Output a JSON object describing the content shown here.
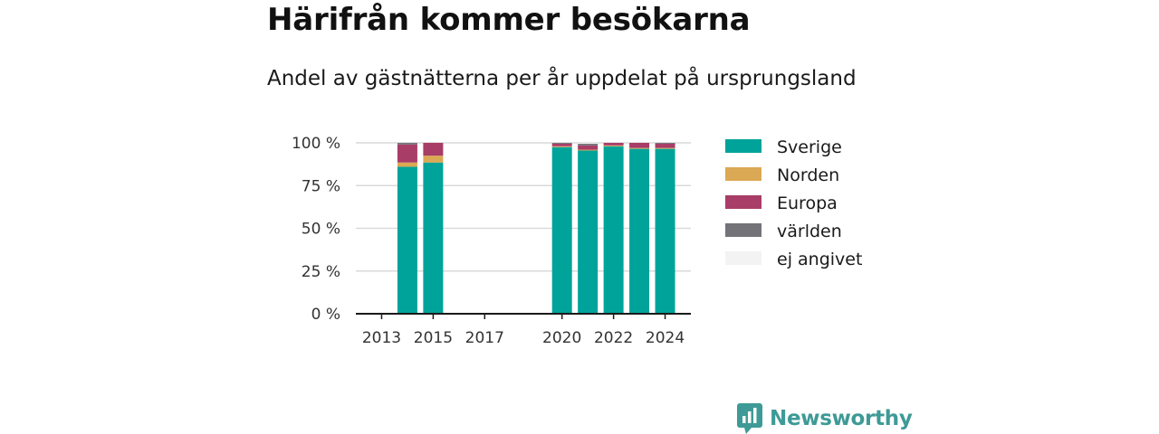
{
  "title": "Härifrån kommer besökarna",
  "subtitle": "Andel av gästnätterna per år uppdelat på ursprungsland",
  "brand": {
    "name": "Newsworthy",
    "icon": "newsworthy-chart-bubble-icon",
    "color": "#3e9a96"
  },
  "chart_data": {
    "type": "bar",
    "stacked": true,
    "title": "",
    "xlabel": "",
    "ylabel": "",
    "ylim": [
      0,
      100
    ],
    "y_ticks": [
      0,
      25,
      50,
      75,
      100
    ],
    "y_tick_labels": [
      "0 %",
      "25 %",
      "50 %",
      "75 %",
      "100 %"
    ],
    "x_ticks": [
      2013,
      2015,
      2017,
      2020,
      2022,
      2024
    ],
    "x_tick_labels": [
      "2013",
      "2015",
      "2017",
      "2020",
      "2022",
      "2024"
    ],
    "x_range": [
      2012,
      2025
    ],
    "grid": true,
    "legend_position": "right",
    "categories": [
      2014,
      2015,
      2020,
      2021,
      2022,
      2023,
      2024
    ],
    "series": [
      {
        "name": "Sverige",
        "color": "#00a39a",
        "values": [
          86,
          88.5,
          97.5,
          95.5,
          98,
          96.5,
          96.5
        ]
      },
      {
        "name": "Norden",
        "color": "#dba853",
        "values": [
          2.5,
          4,
          0.5,
          0.5,
          0.5,
          0.5,
          0.5
        ]
      },
      {
        "name": "Europa",
        "color": "#a83d67",
        "values": [
          10.5,
          7.5,
          1.5,
          2.5,
          1.5,
          3,
          2.5
        ]
      },
      {
        "name": "världen",
        "color": "#737378",
        "values": [
          1,
          0,
          0.5,
          1,
          0,
          0,
          0.5
        ]
      },
      {
        "name": "ej angivet",
        "color": "#f3f3f3",
        "values": [
          0,
          0,
          0,
          0.5,
          0,
          0,
          0
        ]
      }
    ]
  }
}
